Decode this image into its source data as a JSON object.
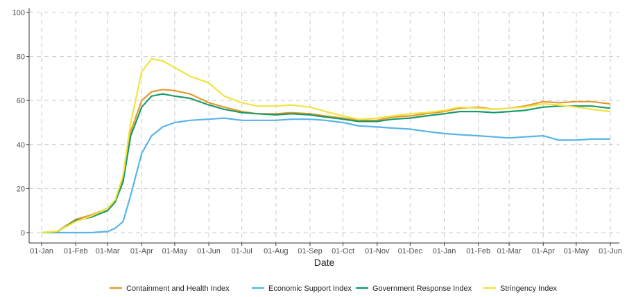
{
  "chart_data": {
    "type": "line",
    "title": "",
    "xlabel": "Date",
    "ylabel": "",
    "ylim": [
      0,
      100
    ],
    "yticks": [
      0,
      20,
      40,
      60,
      80,
      100
    ],
    "xlim": [
      "2020-01-01",
      "2021-06-01"
    ],
    "xticks": [
      {
        "date": "2020-01-01",
        "label": "01-Jan"
      },
      {
        "date": "2020-02-01",
        "label": "01-Feb"
      },
      {
        "date": "2020-03-01",
        "label": "01-Mar"
      },
      {
        "date": "2020-04-01",
        "label": "01-Apr"
      },
      {
        "date": "2020-05-01",
        "label": "01-May"
      },
      {
        "date": "2020-06-01",
        "label": "01-Jun"
      },
      {
        "date": "2020-07-01",
        "label": "01-Jul"
      },
      {
        "date": "2020-08-01",
        "label": "01-Aug"
      },
      {
        "date": "2020-09-01",
        "label": "01-Sep"
      },
      {
        "date": "2020-10-01",
        "label": "01-Oct"
      },
      {
        "date": "2020-11-01",
        "label": "01-Nov"
      },
      {
        "date": "2020-12-01",
        "label": "01-Dec"
      },
      {
        "date": "2021-01-01",
        "label": "01-Jan"
      },
      {
        "date": "2021-02-01",
        "label": "01-Feb"
      },
      {
        "date": "2021-03-01",
        "label": "01-Mar"
      },
      {
        "date": "2021-04-01",
        "label": "01-Apr"
      },
      {
        "date": "2021-05-01",
        "label": "01-May"
      },
      {
        "date": "2021-06-01",
        "label": "01-Jun"
      }
    ],
    "grid": true,
    "legend_position": "bottom",
    "x": [
      "2020-01-01",
      "2020-01-15",
      "2020-02-01",
      "2020-02-15",
      "2020-03-01",
      "2020-03-08",
      "2020-03-15",
      "2020-03-22",
      "2020-04-01",
      "2020-04-10",
      "2020-04-20",
      "2020-05-01",
      "2020-05-15",
      "2020-06-01",
      "2020-06-15",
      "2020-07-01",
      "2020-07-15",
      "2020-08-01",
      "2020-08-15",
      "2020-09-01",
      "2020-09-15",
      "2020-10-01",
      "2020-10-15",
      "2020-11-01",
      "2020-11-15",
      "2020-12-01",
      "2020-12-15",
      "2021-01-01",
      "2021-01-15",
      "2021-02-01",
      "2021-02-15",
      "2021-03-01",
      "2021-03-15",
      "2021-04-01",
      "2021-04-15",
      "2021-05-01",
      "2021-05-15",
      "2021-06-01"
    ],
    "series": [
      {
        "name": "Containment and Health Index",
        "color": "#e39a2d",
        "values": [
          0,
          0.5,
          6,
          8,
          11,
          15,
          24,
          46,
          60,
          64,
          65,
          64.5,
          63,
          59,
          57,
          55,
          54,
          54,
          54.5,
          54,
          53,
          52,
          51,
          51,
          52.5,
          53,
          54,
          55,
          56.5,
          57,
          56,
          56.5,
          57.5,
          59.5,
          59,
          59.5,
          59.5,
          58.5
        ]
      },
      {
        "name": "Economic Support Index",
        "color": "#56b4e9",
        "values": [
          0,
          0,
          0,
          0,
          0.5,
          2,
          5,
          17,
          36,
          44,
          48,
          50,
          51,
          51.5,
          52,
          51,
          51,
          51,
          51.5,
          51.5,
          51,
          50,
          48.5,
          48,
          47.5,
          47,
          46,
          45,
          44.5,
          44,
          43.5,
          43,
          43.5,
          44,
          42,
          42,
          42.5,
          42.5
        ]
      },
      {
        "name": "Government Response Index",
        "color": "#1a9a6b",
        "values": [
          0,
          0.3,
          5.5,
          7,
          10,
          14,
          23,
          44,
          57,
          62,
          63,
          62,
          61,
          58,
          56,
          54.5,
          54,
          53.5,
          54,
          53.5,
          52.5,
          51.5,
          50.5,
          50.5,
          51.5,
          52,
          53,
          54,
          55,
          55,
          54.5,
          55,
          55.5,
          57,
          57.5,
          57.5,
          57.5,
          56.5
        ]
      },
      {
        "name": "Stringency Index",
        "color": "#f0e442",
        "values": [
          0,
          0.5,
          5,
          7.5,
          11,
          15,
          26,
          50,
          73,
          79,
          78,
          75,
          71,
          68,
          62,
          59,
          57.5,
          57.5,
          58,
          57,
          55,
          53,
          51.5,
          52,
          53,
          54,
          54.5,
          55.5,
          57,
          56.5,
          56,
          56.5,
          57,
          58.5,
          58,
          57,
          56,
          55
        ]
      }
    ]
  }
}
